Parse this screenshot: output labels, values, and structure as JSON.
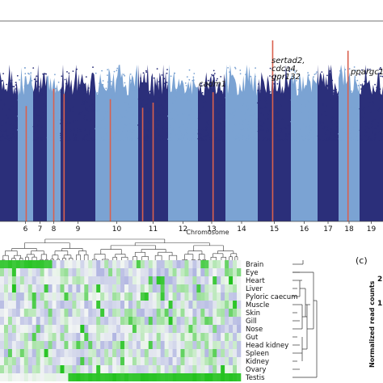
{
  "chart_data": [
    {
      "type": "scatter",
      "subtype": "manhattan",
      "xlabel": "Chromosome",
      "chromosomes": [
        "6",
        "7",
        "8",
        "9",
        "10",
        "11",
        "12",
        "13",
        "14",
        "15",
        "16",
        "17",
        "18",
        "19"
      ],
      "chromosome_extent": [
        5.55,
        19.4
      ],
      "peaks": [
        {
          "label": "cadm1",
          "chromosome": "13",
          "level": 0.56
        },
        {
          "label": "sertad2,",
          "chromosome": "15",
          "level": 0.86
        },
        {
          "label": "cdca4,",
          "chromosome": "15",
          "level": 0.8
        },
        {
          "label": "gpr132",
          "chromosome": "15",
          "level": 0.74
        },
        {
          "label": "ppargc1",
          "chromosome": "18",
          "level": 0.8
        }
      ],
      "highlighted_loci": [
        {
          "chromosome": "6",
          "position": 0.55,
          "level": 0.48
        },
        {
          "chromosome": "8",
          "position": 0.5,
          "level": 0.58
        },
        {
          "chromosome": "9",
          "position": 0.1,
          "level": 0.55
        },
        {
          "chromosome": "10",
          "position": 0.35,
          "level": 0.52
        },
        {
          "chromosome": "11",
          "position": 0.15,
          "level": 0.47
        },
        {
          "chromosome": "11",
          "position": 0.5,
          "level": 0.5
        },
        {
          "chromosome": "13",
          "position": 0.55,
          "level": 0.56
        },
        {
          "chromosome": "15",
          "position": 0.45,
          "level": 0.86
        },
        {
          "chromosome": "18",
          "position": 0.45,
          "level": 0.8
        }
      ],
      "colors": {
        "dark": "#2b2f7a",
        "light": "#7ba3d3",
        "highlight": "#d9604e"
      }
    },
    {
      "type": "heatmap",
      "rows": [
        "Brain",
        "Eye",
        "Heart",
        "Liver",
        "Pyloric caecum",
        "Muscle",
        "Skin",
        "Gill",
        "Nose",
        "Gut",
        "Head kidney",
        "Spleen",
        "Kidney",
        "Ovary",
        "Testis"
      ],
      "colors": {
        "high": "#22c21e",
        "mid": "#f3f6f4",
        "low": "#8f94d8"
      }
    },
    {
      "type": "bar",
      "panel_label": "(c)",
      "ylabel": "Normalized read counts",
      "ytick_labels": [
        "2",
        "1"
      ]
    }
  ]
}
